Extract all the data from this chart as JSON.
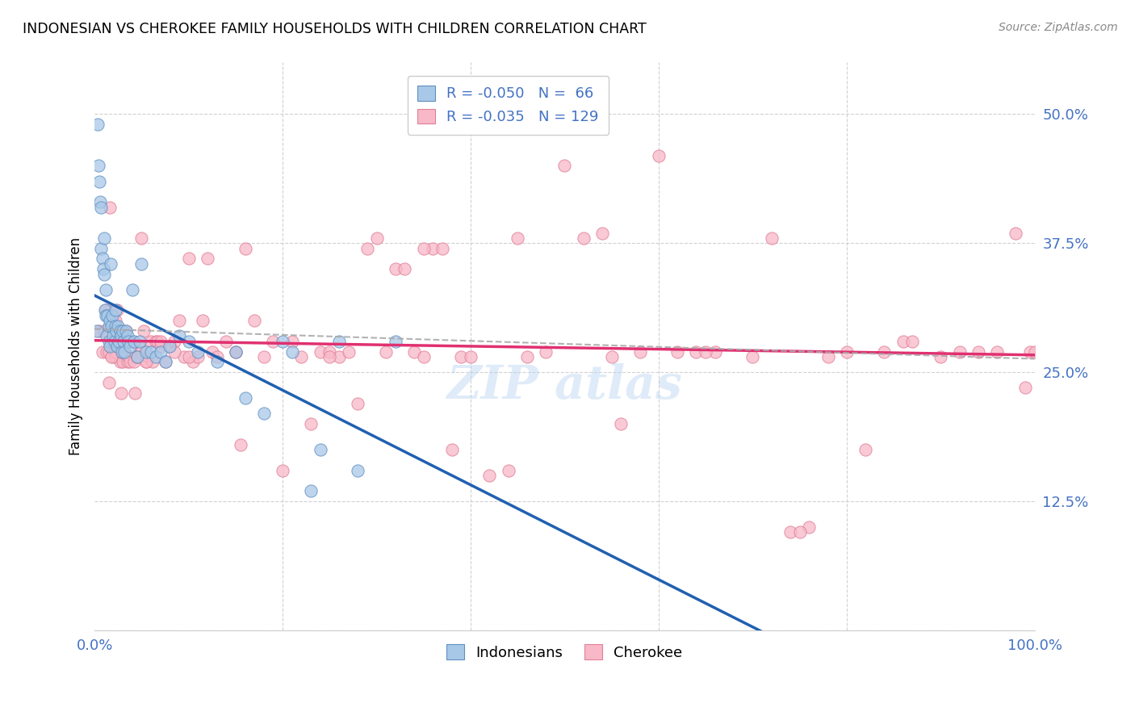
{
  "title": "INDONESIAN VS CHEROKEE FAMILY HOUSEHOLDS WITH CHILDREN CORRELATION CHART",
  "source": "Source: ZipAtlas.com",
  "ylabel": "Family Households with Children",
  "y_ticks": [
    0.0,
    0.125,
    0.25,
    0.375,
    0.5
  ],
  "y_tick_labels": [
    "",
    "12.5%",
    "25.0%",
    "37.5%",
    "50.0%"
  ],
  "x_range": [
    0.0,
    1.0
  ],
  "y_range": [
    0.0,
    0.55
  ],
  "legend_blue_label": "R = -0.050   N =  66",
  "legend_pink_label": "R = -0.035   N = 129",
  "footer_blue": "Indonesians",
  "footer_pink": "Cherokee",
  "blue_fill": "#a8c8e8",
  "pink_fill": "#f8b8c8",
  "blue_edge": "#6090c0",
  "pink_edge": "#e08098",
  "blue_line_color": "#2060b0",
  "pink_line_color": "#e03070",
  "dash_line_color": "#aaaaaa",
  "blue_text_color": "#4472c4",
  "indonesian_x": [
    0.002,
    0.003,
    0.004,
    0.005,
    0.006,
    0.007,
    0.007,
    0.008,
    0.009,
    0.01,
    0.01,
    0.011,
    0.012,
    0.012,
    0.013,
    0.014,
    0.015,
    0.015,
    0.016,
    0.016,
    0.017,
    0.018,
    0.019,
    0.02,
    0.021,
    0.022,
    0.022,
    0.023,
    0.024,
    0.025,
    0.026,
    0.027,
    0.028,
    0.029,
    0.03,
    0.031,
    0.032,
    0.033,
    0.035,
    0.036,
    0.038,
    0.04,
    0.042,
    0.045,
    0.048,
    0.05,
    0.055,
    0.06,
    0.065,
    0.07,
    0.075,
    0.08,
    0.09,
    0.1,
    0.11,
    0.13,
    0.15,
    0.16,
    0.18,
    0.2,
    0.21,
    0.23,
    0.24,
    0.26,
    0.28,
    0.32
  ],
  "indonesian_y": [
    0.29,
    0.49,
    0.45,
    0.435,
    0.415,
    0.37,
    0.41,
    0.36,
    0.35,
    0.345,
    0.38,
    0.31,
    0.305,
    0.33,
    0.285,
    0.305,
    0.295,
    0.28,
    0.3,
    0.275,
    0.355,
    0.295,
    0.305,
    0.285,
    0.28,
    0.295,
    0.31,
    0.29,
    0.275,
    0.295,
    0.28,
    0.29,
    0.285,
    0.27,
    0.29,
    0.28,
    0.27,
    0.29,
    0.285,
    0.28,
    0.275,
    0.33,
    0.28,
    0.265,
    0.28,
    0.355,
    0.27,
    0.27,
    0.265,
    0.27,
    0.26,
    0.275,
    0.285,
    0.28,
    0.27,
    0.26,
    0.27,
    0.225,
    0.21,
    0.28,
    0.27,
    0.135,
    0.175,
    0.28,
    0.155,
    0.28
  ],
  "cherokee_x": [
    0.005,
    0.008,
    0.01,
    0.012,
    0.013,
    0.015,
    0.015,
    0.016,
    0.017,
    0.018,
    0.019,
    0.02,
    0.021,
    0.022,
    0.023,
    0.024,
    0.025,
    0.026,
    0.027,
    0.028,
    0.03,
    0.031,
    0.032,
    0.033,
    0.035,
    0.036,
    0.037,
    0.038,
    0.04,
    0.042,
    0.043,
    0.045,
    0.047,
    0.05,
    0.052,
    0.055,
    0.057,
    0.06,
    0.062,
    0.065,
    0.067,
    0.07,
    0.075,
    0.08,
    0.085,
    0.09,
    0.095,
    0.1,
    0.105,
    0.11,
    0.115,
    0.12,
    0.125,
    0.13,
    0.14,
    0.15,
    0.155,
    0.16,
    0.17,
    0.18,
    0.19,
    0.2,
    0.21,
    0.22,
    0.23,
    0.24,
    0.25,
    0.26,
    0.27,
    0.28,
    0.29,
    0.3,
    0.31,
    0.32,
    0.33,
    0.34,
    0.35,
    0.36,
    0.37,
    0.38,
    0.39,
    0.4,
    0.42,
    0.44,
    0.46,
    0.48,
    0.5,
    0.52,
    0.54,
    0.56,
    0.58,
    0.6,
    0.62,
    0.64,
    0.66,
    0.7,
    0.72,
    0.74,
    0.76,
    0.78,
    0.8,
    0.82,
    0.84,
    0.86,
    0.9,
    0.92,
    0.94,
    0.96,
    0.98,
    0.99,
    0.995,
    1.0,
    0.87,
    0.75,
    0.65,
    0.55,
    0.45,
    0.35,
    0.25,
    0.15,
    0.05,
    0.028,
    0.022,
    0.018,
    0.045,
    0.055,
    0.07,
    0.085,
    0.1
  ],
  "cherokee_y": [
    0.29,
    0.27,
    0.29,
    0.31,
    0.27,
    0.27,
    0.24,
    0.41,
    0.275,
    0.28,
    0.265,
    0.28,
    0.27,
    0.265,
    0.27,
    0.31,
    0.275,
    0.28,
    0.26,
    0.23,
    0.26,
    0.275,
    0.27,
    0.29,
    0.26,
    0.265,
    0.28,
    0.26,
    0.28,
    0.26,
    0.23,
    0.265,
    0.275,
    0.27,
    0.29,
    0.26,
    0.265,
    0.28,
    0.26,
    0.28,
    0.28,
    0.275,
    0.26,
    0.275,
    0.28,
    0.3,
    0.265,
    0.36,
    0.26,
    0.265,
    0.3,
    0.36,
    0.27,
    0.265,
    0.28,
    0.27,
    0.18,
    0.37,
    0.3,
    0.265,
    0.28,
    0.155,
    0.28,
    0.265,
    0.2,
    0.27,
    0.27,
    0.265,
    0.27,
    0.22,
    0.37,
    0.38,
    0.27,
    0.35,
    0.35,
    0.27,
    0.265,
    0.37,
    0.37,
    0.175,
    0.265,
    0.265,
    0.15,
    0.155,
    0.265,
    0.27,
    0.45,
    0.38,
    0.385,
    0.2,
    0.27,
    0.46,
    0.27,
    0.27,
    0.27,
    0.265,
    0.38,
    0.095,
    0.1,
    0.265,
    0.27,
    0.175,
    0.27,
    0.28,
    0.265,
    0.27,
    0.27,
    0.27,
    0.385,
    0.235,
    0.27,
    0.27,
    0.28,
    0.095,
    0.27,
    0.265,
    0.38,
    0.37,
    0.265,
    0.27,
    0.38,
    0.27,
    0.3,
    0.265,
    0.265,
    0.26,
    0.28,
    0.27,
    0.265
  ]
}
